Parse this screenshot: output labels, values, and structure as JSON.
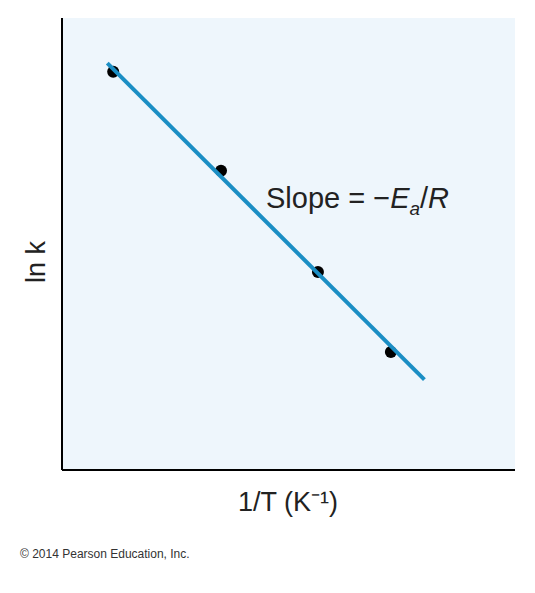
{
  "chart_data": {
    "type": "scatter",
    "x_label": "1/T (K⁻¹)",
    "y_label": "ln k",
    "annotation": "Slope = −Ea/R",
    "footer": "© 2014 Pearson Education, Inc.",
    "xlim": [
      0,
      10
    ],
    "ylim": [
      0,
      10
    ],
    "tick_labels": false,
    "grid": false,
    "series": [
      {
        "type": "scatter",
        "color": "#000000",
        "marker": "circle",
        "x": [
          1.13,
          3.51,
          5.65,
          7.26
        ],
        "values": [
          8.81,
          6.62,
          4.38,
          2.61
        ]
      },
      {
        "type": "line",
        "color": "#1b8ec4",
        "line_style": "solid",
        "x": [
          1.0,
          8.0
        ],
        "values": [
          9.0,
          2.0
        ]
      }
    ]
  }
}
